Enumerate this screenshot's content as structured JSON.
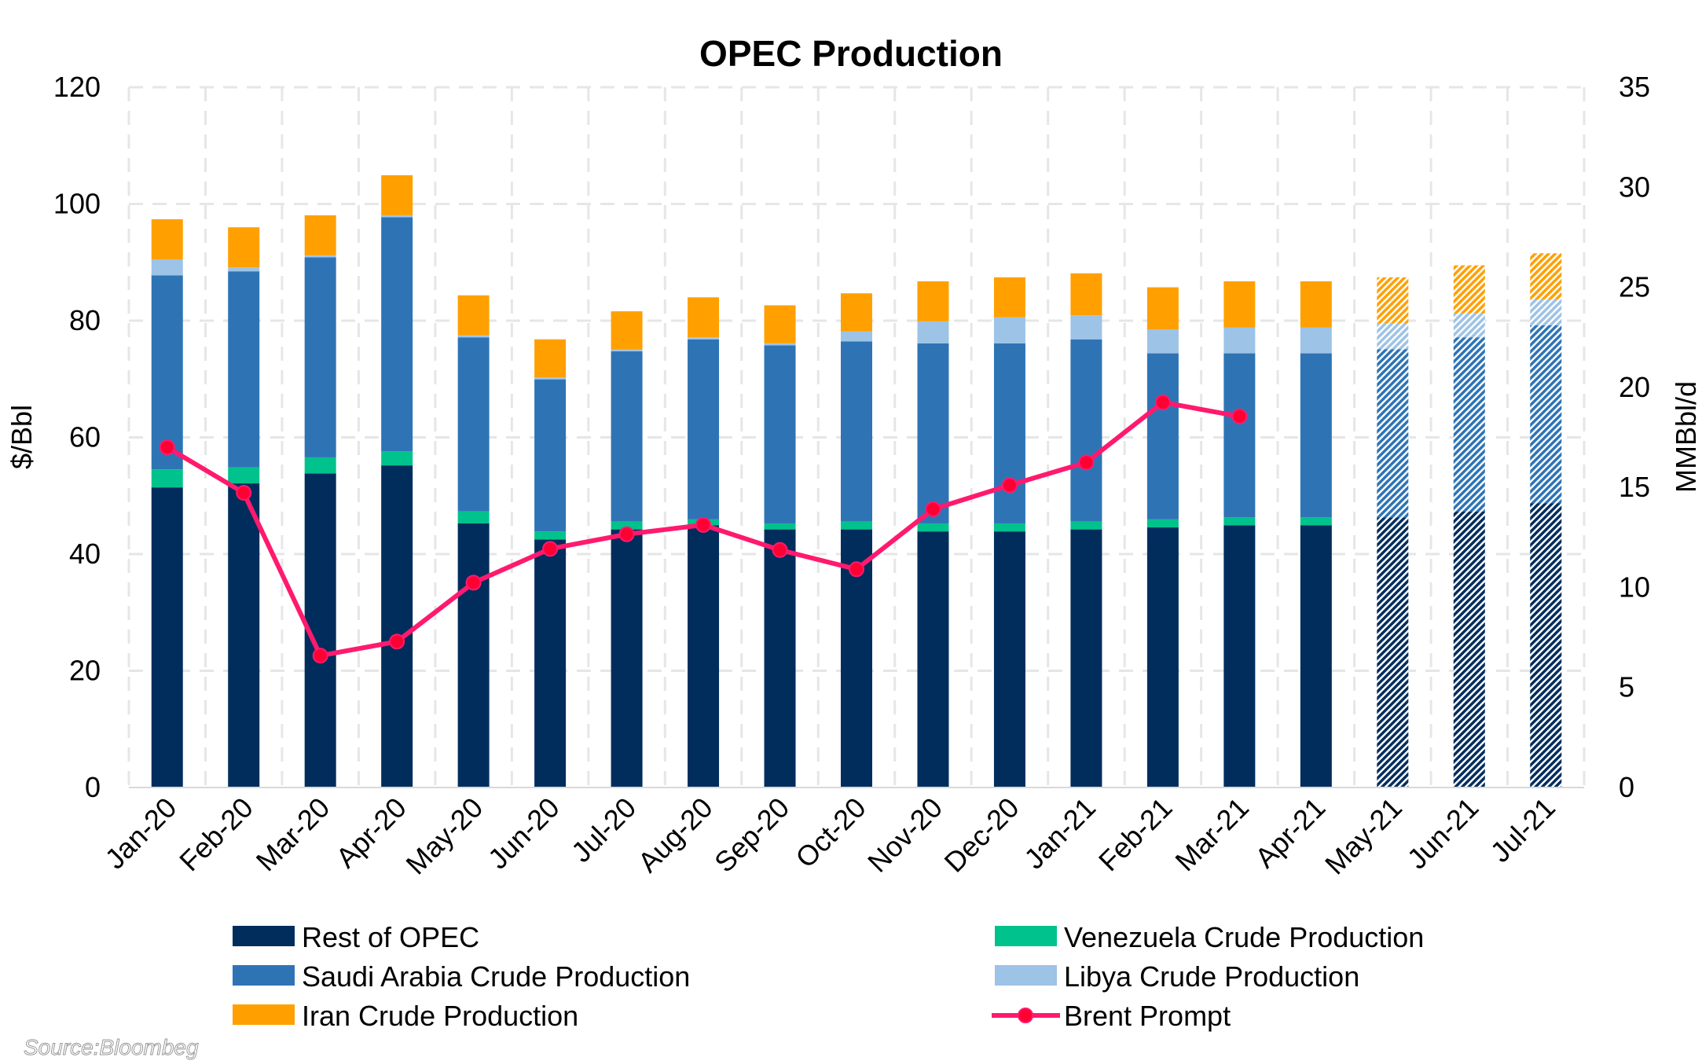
{
  "chart_data": {
    "type": "bar",
    "subtype": "stacked bar with line overlay (dual axis)",
    "title": "OPEC Production",
    "ylabel_left": "$/Bbl",
    "ylabel_right": "MMBbl/d",
    "ylim_left": [
      0,
      120
    ],
    "ylim_right": [
      0,
      35
    ],
    "yticks_left": [
      0,
      20,
      40,
      60,
      80,
      100,
      120
    ],
    "yticks_right": [
      0,
      5,
      10,
      15,
      20,
      25,
      30,
      35
    ],
    "grid": true,
    "legend_placement": "bottom",
    "categories": [
      "Jan-20",
      "Feb-20",
      "Mar-20",
      "Apr-20",
      "May-20",
      "Jun-20",
      "Jul-20",
      "Aug-20",
      "Sep-20",
      "Oct-20",
      "Nov-20",
      "Dec-20",
      "Jan-21",
      "Feb-21",
      "Mar-21",
      "Apr-21",
      "May-21",
      "Jun-21",
      "Jul-21"
    ],
    "forecast_categories": [
      "May-21",
      "Jun-21",
      "Jul-21"
    ],
    "series": [
      {
        "name": "Rest of OPEC",
        "axis": "right",
        "kind": "bar",
        "color": "#002D5C",
        "values": [
          15.0,
          15.2,
          15.7,
          16.1,
          13.2,
          12.4,
          12.9,
          13.1,
          12.9,
          12.9,
          12.8,
          12.8,
          12.9,
          13.0,
          13.1,
          13.1,
          13.5,
          13.8,
          14.2
        ]
      },
      {
        "name": "Venezuela Crude Production",
        "axis": "right",
        "kind": "bar",
        "color": "#00C28C",
        "values": [
          0.9,
          0.8,
          0.8,
          0.7,
          0.6,
          0.4,
          0.4,
          0.3,
          0.3,
          0.4,
          0.4,
          0.4,
          0.4,
          0.4,
          0.4,
          0.4,
          0,
          0,
          0
        ]
      },
      {
        "name": "Saudi Arabia Crude Production",
        "axis": "right",
        "kind": "bar",
        "color": "#2E74B5",
        "values": [
          9.7,
          9.8,
          10.0,
          11.7,
          8.7,
          7.6,
          8.5,
          9.0,
          8.9,
          9.0,
          9.0,
          9.0,
          9.1,
          8.3,
          8.2,
          8.2,
          8.4,
          8.7,
          8.9
        ]
      },
      {
        "name": "Libya Crude Production",
        "axis": "right",
        "kind": "bar",
        "color": "#9DC3E6",
        "values": [
          0.8,
          0.2,
          0.1,
          0.1,
          0.1,
          0.1,
          0.1,
          0.1,
          0.1,
          0.5,
          1.1,
          1.3,
          1.2,
          1.2,
          1.3,
          1.3,
          1.3,
          1.2,
          1.3
        ]
      },
      {
        "name": "Iran Crude Production",
        "axis": "right",
        "kind": "bar",
        "color": "#FFA000",
        "values": [
          2.0,
          2.0,
          2.0,
          2.0,
          2.0,
          1.9,
          1.9,
          2.0,
          1.9,
          1.9,
          2.0,
          2.0,
          2.1,
          2.1,
          2.3,
          2.3,
          2.3,
          2.4,
          2.3
        ]
      },
      {
        "name": "Brent Prompt",
        "axis": "left",
        "kind": "line",
        "color": "#FF1A6E",
        "values": [
          58.3,
          50.5,
          22.6,
          25.0,
          35.1,
          40.9,
          43.4,
          45.0,
          40.7,
          37.4,
          47.7,
          51.8,
          55.7,
          66.0,
          63.6,
          null,
          null,
          null,
          null
        ]
      }
    ],
    "source": "Source:Bloombeg"
  }
}
